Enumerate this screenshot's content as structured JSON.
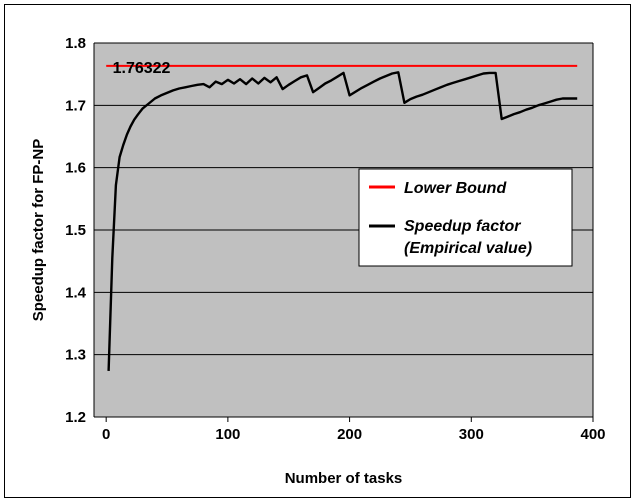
{
  "chart_data": {
    "type": "line",
    "title": "",
    "xlabel": "Number of tasks",
    "ylabel": "Speedup factor for FP-NP",
    "xlim": [
      -10,
      400
    ],
    "ylim": [
      1.2,
      1.8
    ],
    "xticks": [
      0,
      100,
      200,
      300,
      400
    ],
    "xtick_labels": [
      "0",
      "100",
      "200",
      "300",
      "400"
    ],
    "yticks": [
      1.2,
      1.3,
      1.4,
      1.5,
      1.6,
      1.7,
      1.8
    ],
    "ytick_labels": [
      "1.2",
      "1.3",
      "1.4",
      "1.5",
      "1.6",
      "1.7",
      "1.8"
    ],
    "grid": "horizontal",
    "legend_position": "right",
    "plot_background": "#c0c0c0",
    "annotation": "1.76322",
    "series": [
      {
        "name": "Lower Bound",
        "color": "#ff0000",
        "x": [
          0,
          387
        ],
        "y": [
          1.76322,
          1.76322
        ]
      },
      {
        "name": "Speedup factor (Empirical value)",
        "color": "#000000",
        "x": [
          2,
          5,
          8,
          11,
          14,
          17,
          20,
          23,
          26,
          30,
          35,
          40,
          45,
          50,
          55,
          60,
          65,
          70,
          75,
          80,
          85,
          90,
          95,
          100,
          105,
          110,
          115,
          120,
          125,
          130,
          135,
          140,
          145,
          150,
          155,
          160,
          165,
          170,
          175,
          180,
          185,
          190,
          195,
          200,
          205,
          210,
          215,
          220,
          225,
          230,
          235,
          240,
          245,
          250,
          255,
          260,
          265,
          270,
          275,
          280,
          285,
          290,
          295,
          300,
          305,
          310,
          315,
          320,
          325,
          330,
          335,
          340,
          345,
          350,
          355,
          360,
          365,
          370,
          375,
          380,
          385,
          387
        ],
        "y": [
          1.274,
          1.455,
          1.572,
          1.617,
          1.636,
          1.653,
          1.666,
          1.677,
          1.685,
          1.695,
          1.703,
          1.711,
          1.716,
          1.72,
          1.724,
          1.727,
          1.729,
          1.731,
          1.733,
          1.734,
          1.729,
          1.738,
          1.734,
          1.741,
          1.735,
          1.742,
          1.734,
          1.743,
          1.735,
          1.744,
          1.737,
          1.745,
          1.726,
          1.733,
          1.739,
          1.745,
          1.748,
          1.721,
          1.728,
          1.735,
          1.74,
          1.746,
          1.752,
          1.716,
          1.722,
          1.728,
          1.733,
          1.738,
          1.743,
          1.747,
          1.751,
          1.753,
          1.704,
          1.71,
          1.714,
          1.717,
          1.721,
          1.725,
          1.729,
          1.733,
          1.736,
          1.739,
          1.742,
          1.745,
          1.748,
          1.751,
          1.752,
          1.752,
          1.678,
          1.682,
          1.686,
          1.689,
          1.693,
          1.696,
          1.7,
          1.703,
          1.706,
          1.709,
          1.711,
          1.711,
          1.711,
          1.711
        ]
      }
    ]
  }
}
